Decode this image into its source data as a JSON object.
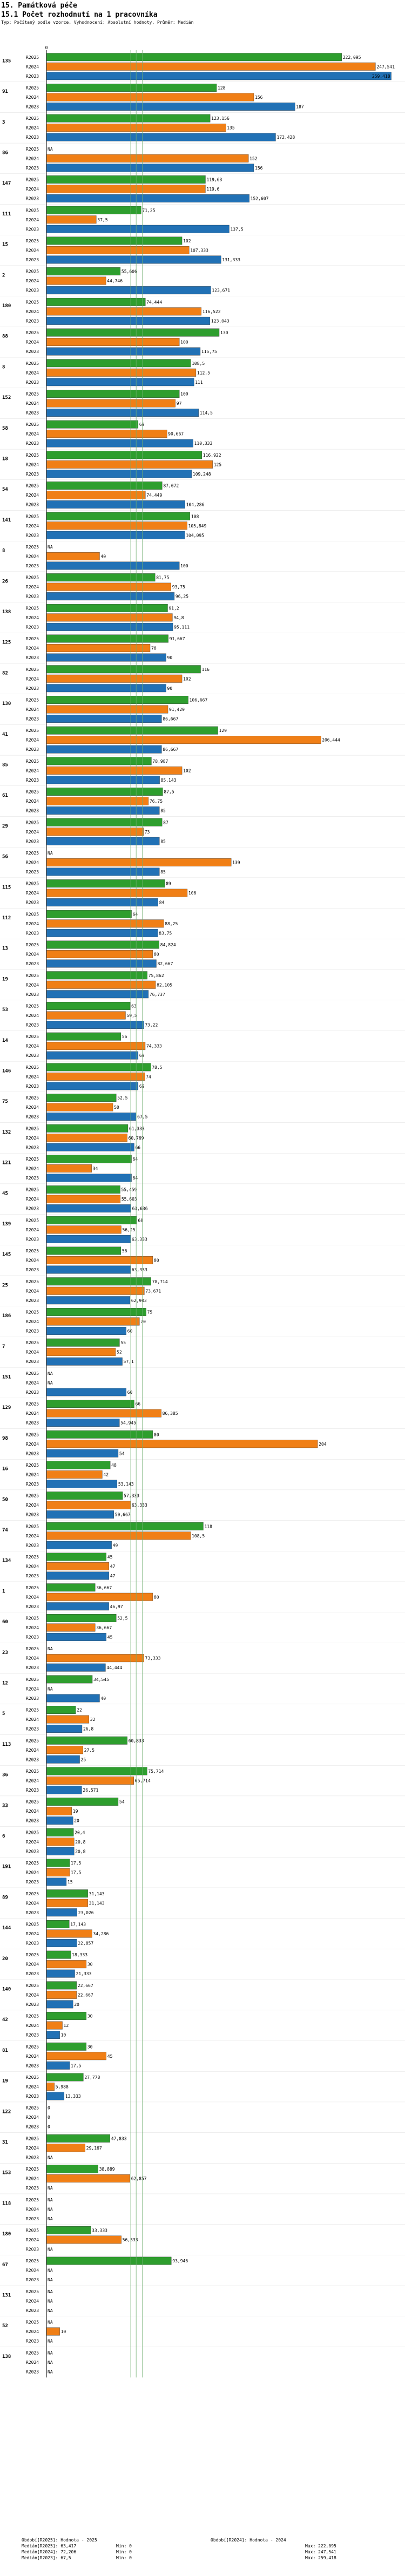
{
  "header": {
    "section_title": "15. Památková péče",
    "chart_title": "15.1 Počet rozhodnutí na 1 pracovníka",
    "subtitle": "Typ: Počítaný podle vzorce, Vyhodnocení: Absolutní hodnoty, Průměr: Medián"
  },
  "colors": {
    "r2025": "#2e9e2e",
    "r2024": "#f07f16",
    "r2023": "#2171b5",
    "median": "#6fae6f",
    "axis": "#000000"
  },
  "chart_data": {
    "type": "bar",
    "orientation": "horizontal",
    "title": "15.1 Počet rozhodnutí na 1 pracovníka",
    "series_labels": [
      "R2025",
      "R2024",
      "R2023"
    ],
    "xlim": [
      0,
      260
    ],
    "zero_label": "0",
    "na_label": "NA",
    "groups": [
      {
        "id": "135",
        "values": [
          222.095,
          247.541,
          259.418
        ],
        "labels": [
          "222,095",
          "247,541",
          "259,418"
        ]
      },
      {
        "id": "91",
        "values": [
          128,
          156,
          187
        ],
        "labels": [
          "128",
          "156",
          "187"
        ]
      },
      {
        "id": "3",
        "values": [
          123.156,
          135,
          172.428
        ],
        "labels": [
          "123,156",
          "135",
          "172,428"
        ]
      },
      {
        "id": "86",
        "values": [
          null,
          152,
          156
        ],
        "labels": [
          "NA",
          "152",
          "156"
        ]
      },
      {
        "id": "147",
        "values": [
          119.63,
          119.6,
          152.607
        ],
        "labels": [
          "119,63",
          "119,6",
          "152,607"
        ]
      },
      {
        "id": "111",
        "values": [
          71.25,
          37.5,
          137.5
        ],
        "labels": [
          "71,25",
          "37,5",
          "137,5"
        ]
      },
      {
        "id": "15",
        "values": [
          102,
          107.333,
          131.333
        ],
        "labels": [
          "102",
          "107,333",
          "131,333"
        ]
      },
      {
        "id": "2",
        "values": [
          55.606,
          44.746,
          123.671
        ],
        "labels": [
          "55,606",
          "44,746",
          "123,671"
        ]
      },
      {
        "id": "180",
        "values": [
          74.444,
          116.522,
          123.043
        ],
        "labels": [
          "74,444",
          "116,522",
          "123,043"
        ]
      },
      {
        "id": "88",
        "values": [
          130,
          100,
          115.75
        ],
        "labels": [
          "130",
          "100",
          "115,75"
        ]
      },
      {
        "id": "8",
        "values": [
          108.5,
          112.5,
          111
        ],
        "labels": [
          "108,5",
          "112,5",
          "111"
        ]
      },
      {
        "id": "152",
        "values": [
          100,
          97,
          114.5
        ],
        "labels": [
          "100",
          "97",
          "114,5"
        ]
      },
      {
        "id": "58",
        "values": [
          69,
          90.667,
          110.333
        ],
        "labels": [
          "69",
          "90,667",
          "110,333"
        ]
      },
      {
        "id": "18",
        "values": [
          116.922,
          125,
          109.248
        ],
        "labels": [
          "116,922",
          "125",
          "109,248"
        ]
      },
      {
        "id": "54",
        "values": [
          87.072,
          74.449,
          104.286
        ],
        "labels": [
          "87,072",
          "74,449",
          "104,286"
        ]
      },
      {
        "id": "141",
        "values": [
          108,
          105.849,
          104.095
        ],
        "labels": [
          "108",
          "105,849",
          "104,095"
        ]
      },
      {
        "id": "8",
        "values": [
          null,
          40,
          100
        ],
        "labels": [
          "NA",
          "40",
          "100"
        ]
      },
      {
        "id": "26",
        "values": [
          81.75,
          93.75,
          96.25
        ],
        "labels": [
          "81,75",
          "93,75",
          "96,25"
        ]
      },
      {
        "id": "138",
        "values": [
          91.2,
          94.8,
          95.111
        ],
        "labels": [
          "91,2",
          "94,8",
          "95,111"
        ]
      },
      {
        "id": "125",
        "values": [
          91.667,
          78,
          90
        ],
        "labels": [
          "91,667",
          "78",
          "90"
        ]
      },
      {
        "id": "82",
        "values": [
          116,
          102,
          90
        ],
        "labels": [
          "116",
          "102",
          "90"
        ]
      },
      {
        "id": "130",
        "values": [
          106.667,
          91.429,
          86.667
        ],
        "labels": [
          "106,667",
          "91,429",
          "86,667"
        ]
      },
      {
        "id": "41",
        "values": [
          129,
          206.444,
          86.667
        ],
        "labels": [
          "129",
          "206,444",
          "86,667"
        ]
      },
      {
        "id": "85",
        "values": [
          78.987,
          102,
          85.143
        ],
        "labels": [
          "78,987",
          "102",
          "85,143"
        ]
      },
      {
        "id": "61",
        "values": [
          87.5,
          76.75,
          85
        ],
        "labels": [
          "87,5",
          "76,75",
          "85"
        ]
      },
      {
        "id": "29",
        "values": [
          87,
          73,
          85
        ],
        "labels": [
          "87",
          "73",
          "85"
        ]
      },
      {
        "id": "56",
        "values": [
          null,
          139,
          85
        ],
        "labels": [
          "NA",
          "139",
          "85"
        ]
      },
      {
        "id": "115",
        "values": [
          89,
          106,
          84
        ],
        "labels": [
          "89",
          "106",
          "84"
        ]
      },
      {
        "id": "112",
        "values": [
          64,
          88.25,
          83.75
        ],
        "labels": [
          "64",
          "88,25",
          "83,75"
        ]
      },
      {
        "id": "13",
        "values": [
          84.824,
          80,
          82.667
        ],
        "labels": [
          "84,824",
          "80",
          "82,667"
        ]
      },
      {
        "id": "19",
        "values": [
          75.862,
          82.105,
          76.737
        ],
        "labels": [
          "75,862",
          "82,105",
          "76,737"
        ]
      },
      {
        "id": "53",
        "values": [
          63,
          59.5,
          73.22
        ],
        "labels": [
          "63",
          "59,5",
          "73,22"
        ]
      },
      {
        "id": "14",
        "values": [
          56,
          74.333,
          69
        ],
        "labels": [
          "56",
          "74,333",
          "69"
        ]
      },
      {
        "id": "146",
        "values": [
          78.5,
          74,
          69
        ],
        "labels": [
          "78,5",
          "74",
          "69"
        ]
      },
      {
        "id": "75",
        "values": [
          52.5,
          50,
          67.5
        ],
        "labels": [
          "52,5",
          "50",
          "67,5"
        ]
      },
      {
        "id": "132",
        "values": [
          61.333,
          60.769,
          66
        ],
        "labels": [
          "61,333",
          "60,769",
          "66"
        ]
      },
      {
        "id": "121",
        "values": [
          64,
          34,
          64
        ],
        "labels": [
          "64",
          "34",
          "64"
        ]
      },
      {
        "id": "45",
        "values": [
          55.459,
          55.603,
          63.636
        ],
        "labels": [
          "55,459",
          "55,603",
          "63,636"
        ]
      },
      {
        "id": "139",
        "values": [
          68,
          56.25,
          63.333
        ],
        "labels": [
          "68",
          "56,25",
          "63,333"
        ]
      },
      {
        "id": "145",
        "values": [
          56,
          80,
          63.333
        ],
        "labels": [
          "56",
          "80",
          "63,333"
        ]
      },
      {
        "id": "25",
        "values": [
          78.714,
          73.671,
          62.903
        ],
        "labels": [
          "78,714",
          "73,671",
          "62,903"
        ]
      },
      {
        "id": "186",
        "values": [
          75,
          70,
          60
        ],
        "labels": [
          "75",
          "70",
          "60"
        ]
      },
      {
        "id": "7",
        "values": [
          55,
          52,
          57.1
        ],
        "labels": [
          "55",
          "52",
          "57,1"
        ]
      },
      {
        "id": "151",
        "values": [
          null,
          null,
          60
        ],
        "labels": [
          "NA",
          "NA",
          "60"
        ]
      },
      {
        "id": "129",
        "values": [
          66,
          86.385,
          54.945
        ],
        "labels": [
          "66",
          "86,385",
          "54,945"
        ]
      },
      {
        "id": "98",
        "values": [
          80,
          204,
          54
        ],
        "labels": [
          "80",
          "204",
          "54"
        ]
      },
      {
        "id": "16",
        "values": [
          48,
          42,
          53.143
        ],
        "labels": [
          "48",
          "42",
          "53,143"
        ]
      },
      {
        "id": "50",
        "values": [
          57.333,
          63.333,
          50.667
        ],
        "labels": [
          "57,333",
          "63,333",
          "50,667"
        ]
      },
      {
        "id": "74",
        "values": [
          118,
          108.5,
          49
        ],
        "labels": [
          "118",
          "108,5",
          "49"
        ]
      },
      {
        "id": "134",
        "values": [
          45,
          47,
          47
        ],
        "labels": [
          "45",
          "47",
          "47"
        ]
      },
      {
        "id": "1",
        "values": [
          36.667,
          80,
          46.97
        ],
        "labels": [
          "36,667",
          "80",
          "46,97"
        ]
      },
      {
        "id": "60",
        "values": [
          52.5,
          36.667,
          45
        ],
        "labels": [
          "52,5",
          "36,667",
          "45"
        ]
      },
      {
        "id": "23",
        "values": [
          null,
          73.333,
          44.444
        ],
        "labels": [
          "NA",
          "73,333",
          "44,444"
        ]
      },
      {
        "id": "12",
        "values": [
          34.545,
          null,
          40
        ],
        "labels": [
          "34,545",
          "NA",
          "40"
        ]
      },
      {
        "id": "5",
        "values": [
          22,
          32,
          26.8
        ],
        "labels": [
          "22",
          "32",
          "26,8"
        ]
      },
      {
        "id": "113",
        "values": [
          60.833,
          27.5,
          25
        ],
        "labels": [
          "60,833",
          "27,5",
          "25"
        ]
      },
      {
        "id": "36",
        "values": [
          75.714,
          65.714,
          26.571
        ],
        "labels": [
          "75,714",
          "65,714",
          "26,571"
        ]
      },
      {
        "id": "33",
        "values": [
          54,
          19,
          20
        ],
        "labels": [
          "54",
          "19",
          "20"
        ]
      },
      {
        "id": "6",
        "values": [
          20.4,
          20.8,
          20.8
        ],
        "labels": [
          "20,4",
          "20,8",
          "20,8"
        ]
      },
      {
        "id": "191",
        "values": [
          17.5,
          17.5,
          15
        ],
        "labels": [
          "17,5",
          "17,5",
          "15"
        ]
      },
      {
        "id": "89",
        "values": [
          31.143,
          31.143,
          23.026
        ],
        "labels": [
          "31,143",
          "31,143",
          "23,026"
        ]
      },
      {
        "id": "144",
        "values": [
          17.143,
          34.286,
          22.857
        ],
        "labels": [
          "17,143",
          "34,286",
          "22,857"
        ]
      },
      {
        "id": "20",
        "values": [
          18.333,
          30,
          21.333
        ],
        "labels": [
          "18,333",
          "30",
          "21,333"
        ]
      },
      {
        "id": "140",
        "values": [
          22.667,
          22.667,
          20
        ],
        "labels": [
          "22,667",
          "22,667",
          "20"
        ]
      },
      {
        "id": "42",
        "values": [
          30,
          12,
          10
        ],
        "labels": [
          "30",
          "12",
          "10"
        ]
      },
      {
        "id": "81",
        "values": [
          30,
          45,
          17.5
        ],
        "labels": [
          "30",
          "45",
          "17,5"
        ]
      },
      {
        "id": "19",
        "values": [
          27.778,
          5.988,
          13.333
        ],
        "labels": [
          "27,778",
          "5,988",
          "13,333"
        ]
      },
      {
        "id": "122",
        "values": [
          0,
          0,
          0
        ],
        "labels": [
          "0",
          "0",
          "0"
        ]
      },
      {
        "id": "31",
        "values": [
          47.833,
          29.167,
          null
        ],
        "labels": [
          "47,833",
          "29,167",
          "NA"
        ]
      },
      {
        "id": "153",
        "values": [
          38.889,
          62.857,
          null
        ],
        "labels": [
          "38,889",
          "62,857",
          "NA"
        ]
      },
      {
        "id": "118",
        "values": [
          null,
          null,
          null
        ],
        "labels": [
          "NA",
          "NA",
          "NA"
        ]
      },
      {
        "id": "180",
        "values": [
          33.333,
          56.333,
          null
        ],
        "labels": [
          "33,333",
          "56,333",
          "NA"
        ]
      },
      {
        "id": "67",
        "values": [
          93.946,
          null,
          null
        ],
        "labels": [
          "93,946",
          "NA",
          "NA"
        ]
      },
      {
        "id": "131",
        "values": [
          null,
          null,
          null
        ],
        "labels": [
          "NA",
          "NA",
          "NA"
        ]
      },
      {
        "id": "52",
        "values": [
          null,
          10,
          null
        ],
        "labels": [
          "NA",
          "10",
          "NA"
        ]
      },
      {
        "id": "138",
        "values": [
          null,
          null,
          null
        ],
        "labels": [
          "NA",
          "NA",
          "NA"
        ]
      }
    ],
    "medians": {
      "r2025": 63.417,
      "r2024": 72.206,
      "r2023": 67.5
    }
  },
  "footer": {
    "rows": [
      [
        "Období[R2025]: Hodnota - 2025",
        "",
        "Období[R2024]: Hodnota - 2024",
        ""
      ],
      [
        "Medián[R2025]: 63,417",
        "Min: 0",
        "",
        "Max: 222,095"
      ],
      [
        "Medián[R2024]: 72,206",
        "Min: 0",
        "",
        "Max: 247,541"
      ],
      [
        "Medián[R2023]: 67,5",
        "Min: 0",
        "",
        "Max: 259,418"
      ]
    ]
  }
}
